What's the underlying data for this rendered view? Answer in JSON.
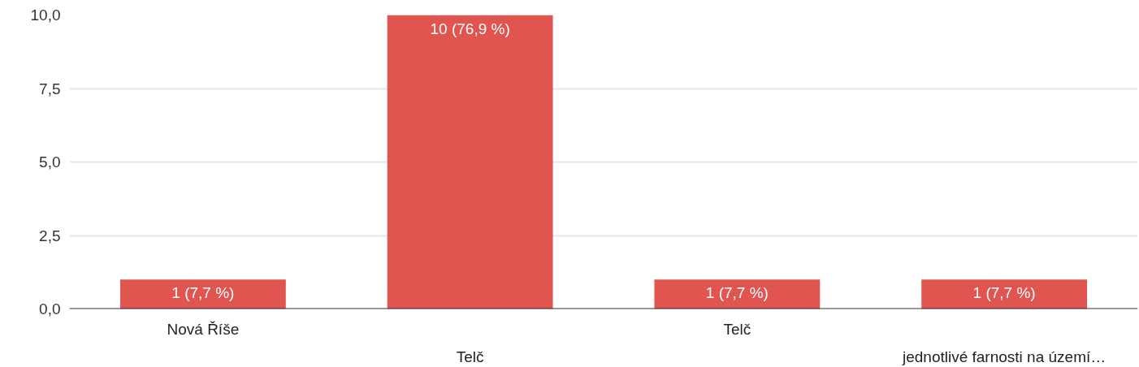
{
  "chart_data": {
    "type": "bar",
    "categories": [
      "Nová Říše",
      "Telč",
      "Telč",
      "jednotlivé farnosti na území…"
    ],
    "values": [
      1,
      10,
      1,
      1
    ],
    "color": "#e15550",
    "value_labels": [
      "1 (7,7 %)",
      "10 (76,9 %)",
      "1 (7,7 %)",
      "1 (7,7 %)"
    ],
    "ylim": [
      0,
      10
    ],
    "yticks": [
      {
        "value": 0,
        "label": "0,0"
      },
      {
        "value": 2.5,
        "label": "2,5"
      },
      {
        "value": 5,
        "label": "5,0"
      },
      {
        "value": 7.5,
        "label": "7,5"
      },
      {
        "value": 10,
        "label": "10,0"
      }
    ],
    "grid": "y"
  }
}
